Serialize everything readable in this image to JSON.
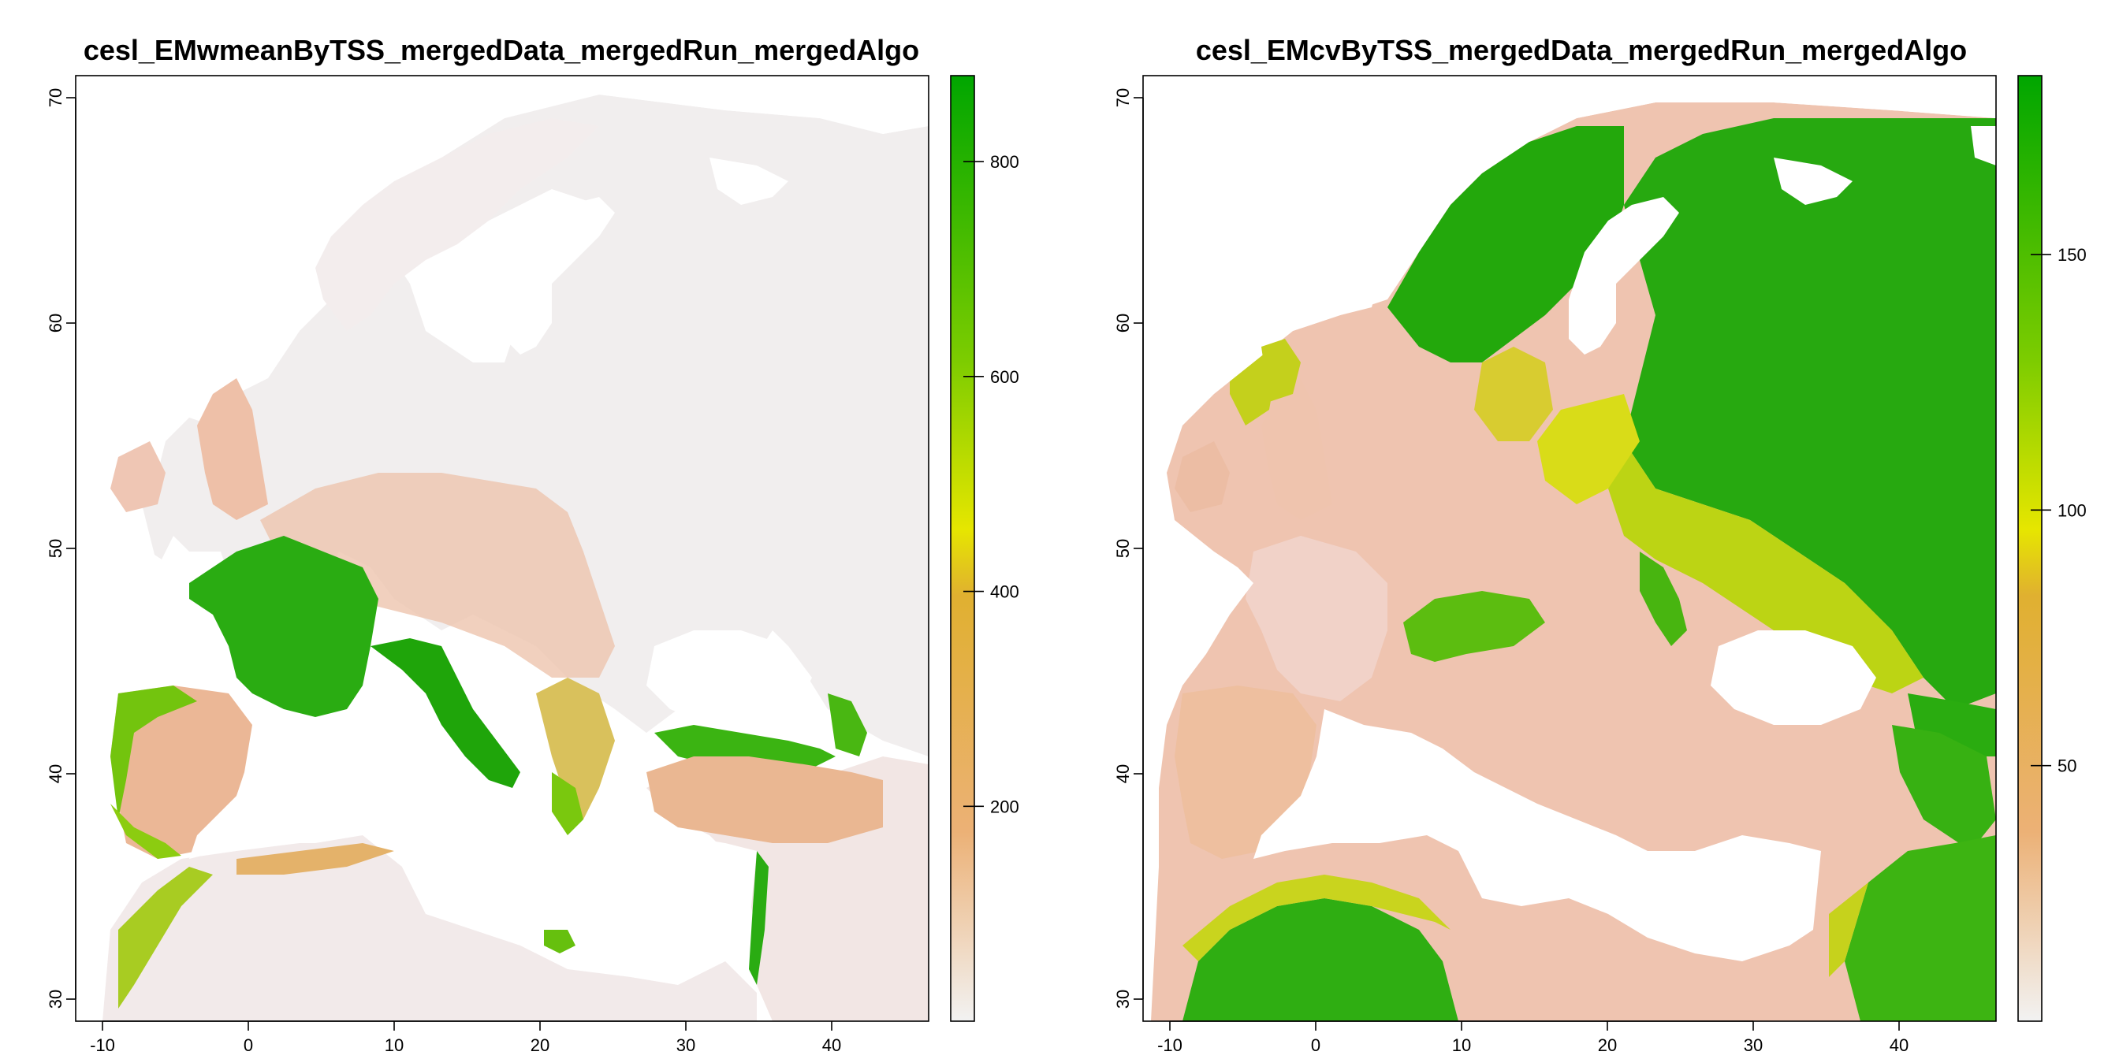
{
  "colorscale": {
    "low": "#f2f2f2",
    "mid1": "#ecb176",
    "mid2": "#e6e600",
    "high": "#00a600"
  },
  "panels": [
    {
      "id": "left",
      "title": "cesl_EMwmeanByTSS_mergedData_mergedRun_mergedAlgo",
      "x_ticks": [
        "-10",
        "0",
        "10",
        "20",
        "30",
        "40"
      ],
      "y_ticks": [
        "30",
        "40",
        "50",
        "60",
        "70"
      ],
      "legend": {
        "ticks": [
          "200",
          "400",
          "600",
          "800"
        ],
        "tick_values": [
          200,
          400,
          600,
          800
        ],
        "range": [
          0,
          880
        ]
      }
    },
    {
      "id": "right",
      "title": "cesl_EMcvByTSS_mergedData_mergedRun_mergedAlgo",
      "x_ticks": [
        "-10",
        "0",
        "10",
        "20",
        "30",
        "40"
      ],
      "y_ticks": [
        "30",
        "40",
        "50",
        "60",
        "70"
      ],
      "legend": {
        "ticks": [
          "50",
          "100",
          "150"
        ],
        "tick_values": [
          50,
          100,
          150
        ],
        "range": [
          0,
          185
        ]
      }
    }
  ],
  "axes": {
    "x_range": [
      -11,
      47
    ],
    "y_range": [
      29,
      71
    ]
  }
}
